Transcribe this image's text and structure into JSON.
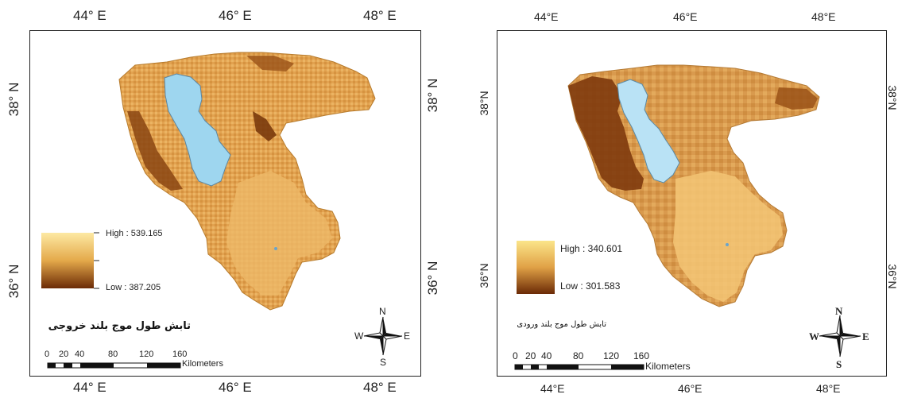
{
  "left_map": {
    "title": "تابش طول موج بلند خروجی",
    "legend": {
      "high": "High : 539.165",
      "low": "Low : 387.205",
      "color_high": "#fde9a3",
      "color_low": "#6b2a06"
    },
    "top_ticks": [
      "44° E",
      "46° E",
      "48° E"
    ],
    "bottom_ticks": [
      "44° E",
      "46° E",
      "48° E"
    ],
    "left_ticks": [
      "38° N",
      "36° N"
    ],
    "right_ticks": [
      "38° N",
      "36° N"
    ],
    "scalebar": {
      "numbers": [
        "0",
        "20",
        "40",
        "80",
        "120",
        "160"
      ],
      "unit": "Kilometers"
    },
    "compass": {
      "n": "N",
      "s": "S",
      "e": "E",
      "w": "W"
    },
    "lake_color": "#9ed6ef"
  },
  "right_map": {
    "title": "تابش طول موج بلند ورودی",
    "legend": {
      "high": "High : 340.601",
      "low": "Low : 301.583",
      "color_high": "#fbe58a",
      "color_low": "#6b2a06"
    },
    "top_ticks": [
      "44°E",
      "46°E",
      "48°E"
    ],
    "bottom_ticks": [
      "44°E",
      "46°E",
      "48°E"
    ],
    "left_ticks": [
      "38°N",
      "36°N"
    ],
    "right_ticks": [
      "38°N",
      "36°N"
    ],
    "scalebar": {
      "numbers": [
        "0",
        "20",
        "40",
        "80",
        "120",
        "160"
      ],
      "unit": "Kilometers"
    },
    "compass": {
      "n": "N",
      "s": "S",
      "e": "E",
      "w": "W"
    },
    "lake_color": "#b9e2f5"
  }
}
